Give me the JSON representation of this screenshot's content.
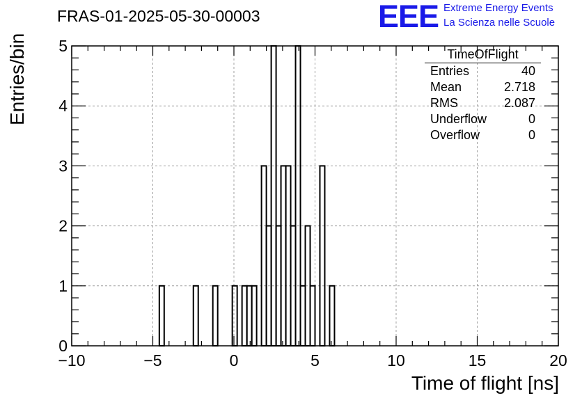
{
  "title": "FRAS-01-2025-05-30-00003",
  "logo": {
    "mark": "EEE",
    "line1": "Extreme Energy Events",
    "line2": "La Scienza nelle Scuole",
    "color": "#1a1ae8"
  },
  "stats_box": {
    "title": "TimeOfFlight",
    "rows": [
      {
        "label": "Entries",
        "value": "40"
      },
      {
        "label": "Mean",
        "value": "2.718"
      },
      {
        "label": "RMS",
        "value": "2.087"
      },
      {
        "label": "Underflow",
        "value": "0"
      },
      {
        "label": "Overflow",
        "value": "0"
      }
    ]
  },
  "chart_data": {
    "type": "histogram",
    "title": "FRAS-01-2025-05-30-00003",
    "xlabel": "Time of flight [ns]",
    "ylabel": "Entries/bin",
    "xlim": [
      -10,
      20
    ],
    "ylim": [
      0,
      5
    ],
    "x_ticks": [
      -10,
      -5,
      0,
      5,
      10,
      15,
      20
    ],
    "x_tick_labels": [
      "−10",
      "−5",
      "0",
      "5",
      "10",
      "15",
      "20"
    ],
    "y_ticks": [
      0,
      1,
      2,
      3,
      4,
      5
    ],
    "y_tick_labels": [
      "0",
      "1",
      "2",
      "3",
      "4",
      "5"
    ],
    "grid": true,
    "bin_width": 0.3,
    "bins": [
      {
        "x0": -4.6,
        "count": 1
      },
      {
        "x0": -2.5,
        "count": 1
      },
      {
        "x0": -1.3,
        "count": 1
      },
      {
        "x0": -0.1,
        "count": 1
      },
      {
        "x0": 0.5,
        "count": 1
      },
      {
        "x0": 0.8,
        "count": 1
      },
      {
        "x0": 1.1,
        "count": 1
      },
      {
        "x0": 1.7,
        "count": 3
      },
      {
        "x0": 2.0,
        "count": 2
      },
      {
        "x0": 2.3,
        "count": 5
      },
      {
        "x0": 2.6,
        "count": 2
      },
      {
        "x0": 2.9,
        "count": 3
      },
      {
        "x0": 3.2,
        "count": 3
      },
      {
        "x0": 3.5,
        "count": 2
      },
      {
        "x0": 3.8,
        "count": 5
      },
      {
        "x0": 4.1,
        "count": 1
      },
      {
        "x0": 4.4,
        "count": 2
      },
      {
        "x0": 4.7,
        "count": 1
      },
      {
        "x0": 5.3,
        "count": 3
      },
      {
        "x0": 5.9,
        "count": 1
      }
    ],
    "line_color": "#000000"
  }
}
